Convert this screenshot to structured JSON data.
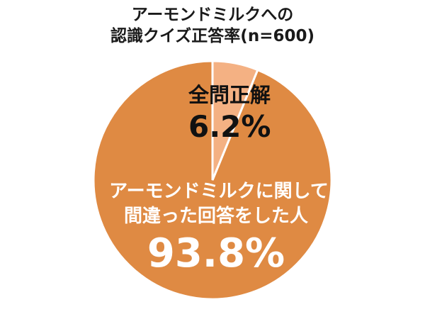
{
  "header": {
    "title_line1": "アーモンドミルクへの",
    "title_line2": "認識クイズ正答率(n=600)"
  },
  "labels": {
    "correct_name": "全問正解",
    "correct_value": "6.2%",
    "incorrect_name_line1": "アーモンドミルクに関して",
    "incorrect_name_line2": "間違った回答をした人",
    "incorrect_value": "93.8%"
  },
  "colors": {
    "correct": "#F4B183",
    "incorrect": "#DF8A43",
    "separator": "#FFFFFF"
  },
  "chart_data": {
    "type": "pie",
    "title": "アーモンドミルクへの認識クイズ正答率(n=600)",
    "categories": [
      "全問正解",
      "アーモンドミルクに関して間違った回答をした人"
    ],
    "values": [
      6.2,
      93.8
    ],
    "unit": "%",
    "n": 600,
    "start_angle": "12 o'clock, clockwise",
    "data_labels": [
      "全問正解 6.2%",
      "アーモンドミルクに関して間違った回答をした人 93.8%"
    ],
    "legend": "none",
    "colors": [
      "#F4B183",
      "#DF8A43"
    ]
  }
}
